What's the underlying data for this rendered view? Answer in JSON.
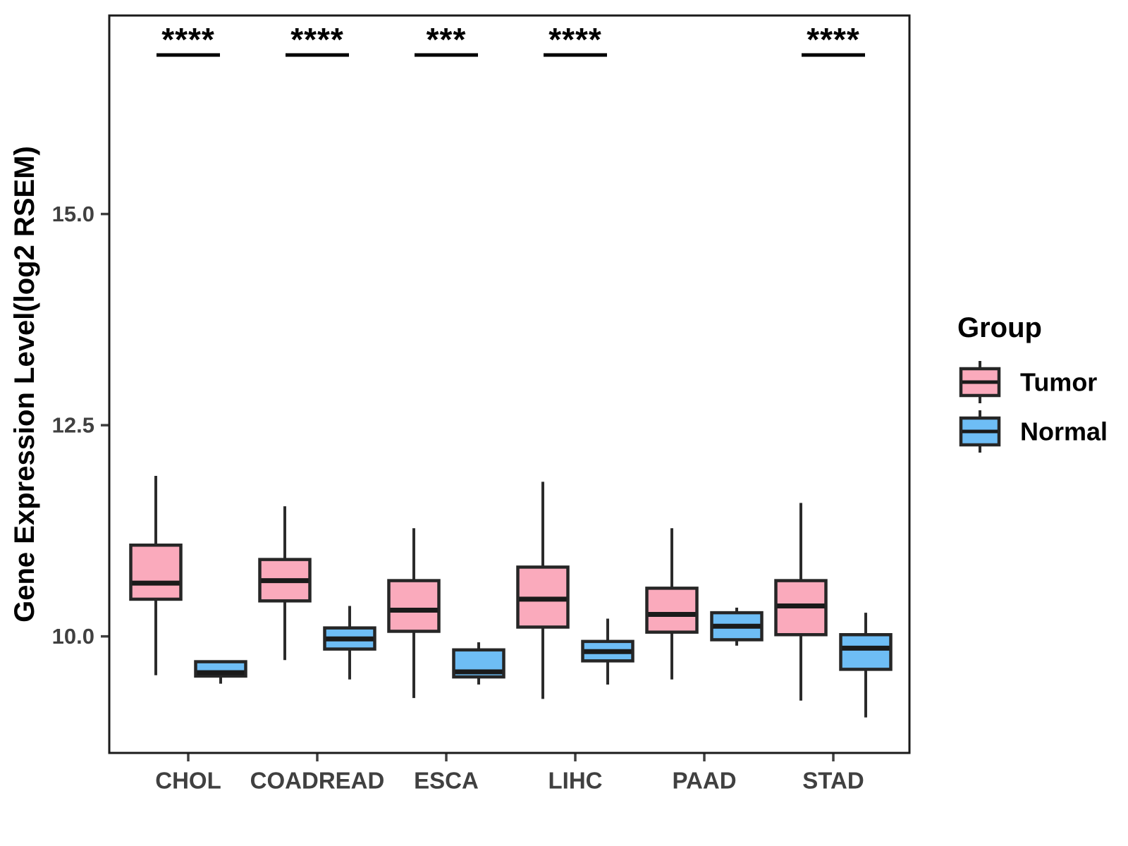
{
  "chart_data": {
    "type": "grouped_boxplot",
    "ylabel": "Gene Expression Level(log2 RSEM)",
    "xlabel": "",
    "ylim": [
      8.62,
      17.35
    ],
    "yticks": {
      "values": [
        10.0,
        12.5,
        15.0
      ],
      "labels": [
        "10.0",
        "12.5",
        "15.0"
      ]
    },
    "categories": [
      "CHOL",
      "COADREAD",
      "ESCA",
      "LIHC",
      "PAAD",
      "STAD"
    ],
    "grid": "off",
    "legend": {
      "title": "Group",
      "position": "right",
      "entries": [
        {
          "label": "Tumor",
          "color": "#FAAABC"
        },
        {
          "label": "Normal",
          "color": "#6EBDF5"
        }
      ]
    },
    "series": [
      {
        "name": "Tumor",
        "color": "#FAAABC",
        "boxes": [
          {
            "category": "CHOL",
            "min": 9.54,
            "q1": 10.44,
            "median": 10.63,
            "q3": 11.08,
            "max": 11.9
          },
          {
            "category": "COADREAD",
            "min": 9.72,
            "q1": 10.42,
            "median": 10.66,
            "q3": 10.91,
            "max": 11.54
          },
          {
            "category": "ESCA",
            "min": 9.27,
            "q1": 10.06,
            "median": 10.31,
            "q3": 10.66,
            "max": 11.28
          },
          {
            "category": "LIHC",
            "min": 9.26,
            "q1": 10.11,
            "median": 10.44,
            "q3": 10.82,
            "max": 11.83
          },
          {
            "category": "PAAD",
            "min": 9.49,
            "q1": 10.05,
            "median": 10.26,
            "q3": 10.57,
            "max": 11.28
          },
          {
            "category": "STAD",
            "min": 9.24,
            "q1": 10.02,
            "median": 10.36,
            "q3": 10.66,
            "max": 11.58
          }
        ]
      },
      {
        "name": "Normal",
        "color": "#6EBDF5",
        "boxes": [
          {
            "category": "CHOL",
            "min": 9.44,
            "q1": 9.53,
            "median": 9.57,
            "q3": 9.7,
            "max": 9.7
          },
          {
            "category": "COADREAD",
            "min": 9.49,
            "q1": 9.85,
            "median": 9.97,
            "q3": 10.1,
            "max": 10.36
          },
          {
            "category": "ESCA",
            "min": 9.43,
            "q1": 9.52,
            "median": 9.58,
            "q3": 9.84,
            "max": 9.93
          },
          {
            "category": "LIHC",
            "min": 9.43,
            "q1": 9.71,
            "median": 9.82,
            "q3": 9.94,
            "max": 10.21
          },
          {
            "category": "PAAD",
            "min": 9.89,
            "q1": 9.96,
            "median": 10.12,
            "q3": 10.28,
            "max": 10.34
          },
          {
            "category": "STAD",
            "min": 9.04,
            "q1": 9.61,
            "median": 9.86,
            "q3": 10.02,
            "max": 10.28
          }
        ]
      }
    ],
    "significance": [
      {
        "category": "CHOL",
        "label": "****"
      },
      {
        "category": "COADREAD",
        "label": "****"
      },
      {
        "category": "ESCA",
        "label": "***"
      },
      {
        "category": "LIHC",
        "label": "****"
      },
      {
        "category": "PAAD",
        "label": ""
      },
      {
        "category": "STAD",
        "label": "****"
      }
    ],
    "colors": {
      "box_border": "#262626",
      "median_line": "#1A1A1A",
      "whisker": "#2B2B2B",
      "panel_border": "#1A1A1A",
      "axis_text": "#404040",
      "axis_title": "#000000",
      "significance_text": "#000000"
    }
  }
}
